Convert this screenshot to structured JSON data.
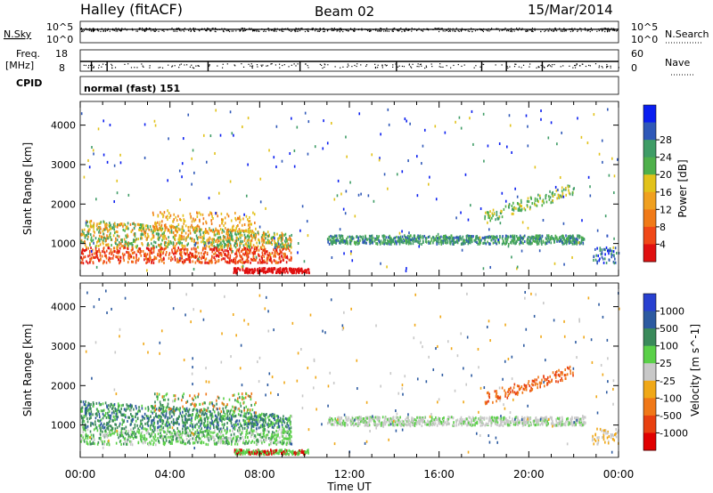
{
  "header": {
    "station": "Halley (fitACF)",
    "beam": "Beam 02",
    "date": "15/Mar/2014"
  },
  "strips": {
    "nsky_label": "N.Sky",
    "nsearch_label": "N.Search",
    "nsky_ticks": [
      "10^5",
      "10^0"
    ],
    "nsearch_ticks": [
      "10^5",
      "10^0"
    ],
    "freq_label_line1": "Freq.",
    "freq_label_line2": "[MHz]",
    "freq_ticks": [
      "18",
      "8"
    ],
    "nave_label": "Nave",
    "nave_ticks": [
      "60",
      "0"
    ],
    "cpid_label": "CPID",
    "cpid_text": "normal (fast) 151"
  },
  "chart_data": [
    {
      "type": "heatmap",
      "name": "power",
      "ylabel": "Slant Range [km]",
      "xlabel": "",
      "y_ticks": [
        1000,
        2000,
        3000,
        4000
      ],
      "ylim": [
        180,
        4600
      ],
      "xlim_hours": [
        0,
        24
      ],
      "colorbar": {
        "label": "Power [dB]",
        "tick_labels": [
          "4",
          "8",
          "12",
          "16",
          "20",
          "24",
          "28"
        ],
        "colors": [
          "#0a1ef0",
          "#2f58b8",
          "#3f9c66",
          "#4fb04b",
          "#e2c21a",
          "#f0a020",
          "#f07a18",
          "#f04818",
          "#e01010"
        ]
      }
    },
    {
      "type": "heatmap",
      "name": "velocity",
      "ylabel": "Slant Range [km]",
      "xlabel": "Time UT",
      "y_ticks": [
        1000,
        2000,
        3000,
        4000
      ],
      "ylim": [
        180,
        4600
      ],
      "xlim_hours": [
        0,
        24
      ],
      "x_tick_labels": [
        "00:00",
        "04:00",
        "08:00",
        "12:00",
        "16:00",
        "20:00",
        "00:00"
      ],
      "colorbar": {
        "label": "Velocity [m s^-1]",
        "tick_labels": [
          "1000",
          "500",
          "100",
          "25",
          "-25",
          "-100",
          "-500",
          "-1000"
        ],
        "colors": [
          "#2840d0",
          "#2c5aa0",
          "#3a8a5a",
          "#5ad048",
          "#c8c8c8",
          "#f0a818",
          "#f07818",
          "#e84010",
          "#e00000"
        ]
      }
    }
  ]
}
